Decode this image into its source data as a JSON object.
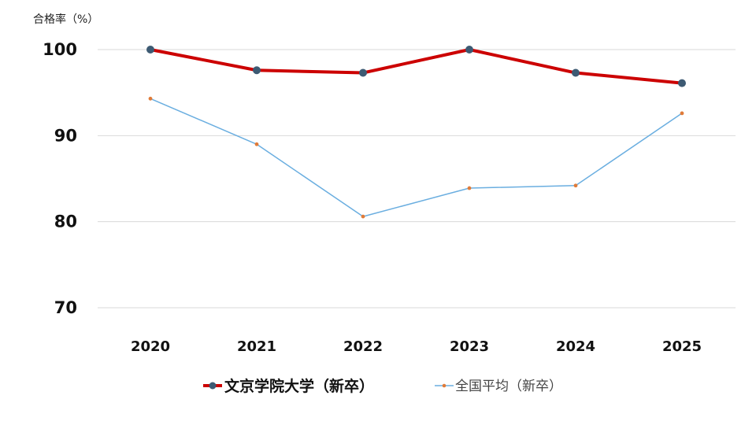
{
  "chart_data": {
    "type": "line",
    "ylabel": "合格率（%）",
    "ylim": [
      70,
      100
    ],
    "yticks": [
      100,
      90,
      80,
      70
    ],
    "categories": [
      "2020",
      "2021",
      "2022",
      "2023",
      "2024",
      "2025"
    ],
    "grid": "horizontal",
    "legend_position": "bottom",
    "series": [
      {
        "name": "文京学院大学（新卒）",
        "values": [
          100,
          97.6,
          97.3,
          100,
          97.3,
          96.1
        ],
        "line_color": "#cc0000",
        "marker_color": "#3d5a73"
      },
      {
        "name": "全国平均（新卒）",
        "values": [
          94.3,
          89.0,
          80.6,
          83.9,
          84.2,
          92.6
        ],
        "line_color": "#6aaee0",
        "marker_color": "#e07b39"
      }
    ]
  }
}
